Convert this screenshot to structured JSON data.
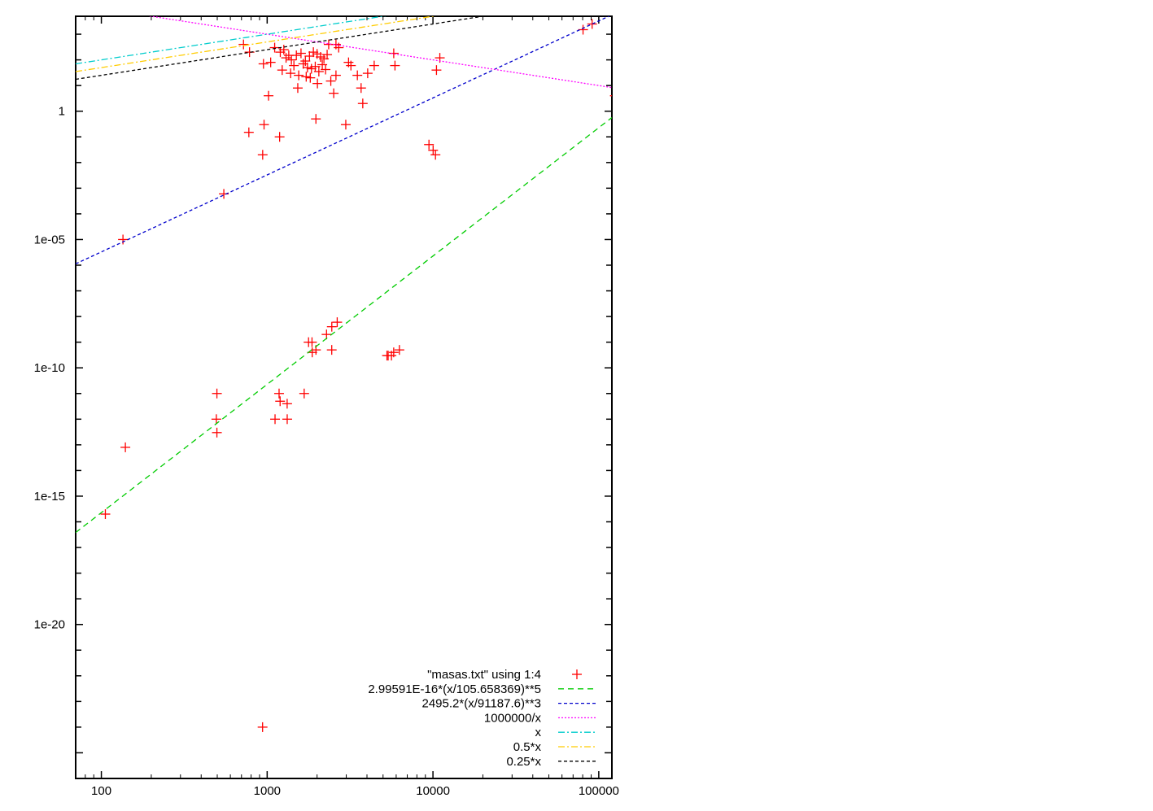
{
  "chart_data": {
    "type": "scatter",
    "x_scale": "log",
    "y_scale": "log",
    "xlim": [
      70,
      120000
    ],
    "ylim": [
      1e-26,
      5000.0
    ],
    "x_ticks": [
      100,
      1000,
      10000,
      100000
    ],
    "x_tick_labels": [
      "100",
      "1000",
      "10000",
      "100000"
    ],
    "y_ticks": [
      1,
      1e-05,
      1e-10,
      1e-15,
      1e-20
    ],
    "y_tick_labels": [
      "1",
      "1e-05",
      "1e-10",
      "1e-15",
      "1e-20"
    ],
    "grid": false,
    "legend_position": "bottom-right",
    "title": "",
    "xlabel": "",
    "ylabel": "",
    "series": [
      {
        "name": "\"masas.txt\" using 1:4",
        "kind": "points",
        "color": "#ff0000",
        "points": [
          [
            105.7,
            2e-16
          ],
          [
            139.6,
            8e-14
          ],
          [
            135,
            1e-05
          ],
          [
            493.7,
            1e-12
          ],
          [
            497.6,
            3e-13
          ],
          [
            497.7,
            1e-11
          ],
          [
            547.9,
            0.0006
          ],
          [
            775.5,
            0.15
          ],
          [
            782.7,
            200
          ],
          [
            938.3,
            1e-24
          ],
          [
            939.6,
            0.02
          ],
          [
            957.8,
            0.3
          ],
          [
            1019.5,
            4
          ],
          [
            1115.7,
            1e-12
          ],
          [
            1180,
            1e-11
          ],
          [
            1189,
            0.1
          ],
          [
            1197,
            5e-12
          ],
          [
            1232,
            40
          ],
          [
            1320,
            4e-12
          ],
          [
            1321,
            1e-12
          ],
          [
            1385,
            30
          ],
          [
            1530,
            8
          ],
          [
            1672,
            1e-11
          ],
          [
            1777,
            1e-09
          ],
          [
            1869,
            4e-10
          ],
          [
            1864,
            1e-09
          ],
          [
            1968,
            0.5
          ],
          [
            1969,
            5e-10
          ],
          [
            2010,
            12
          ],
          [
            2281,
            2e-09
          ],
          [
            2452,
            5e-10
          ],
          [
            2454,
            4e-09
          ],
          [
            2645,
            6e-09
          ],
          [
            2980,
            0.3
          ],
          [
            3097,
            80
          ],
          [
            3686,
            8
          ],
          [
            3773,
            2
          ],
          [
            4039,
            30
          ],
          [
            4421,
            60
          ],
          [
            5279,
            3e-10
          ],
          [
            5366,
            3e-10
          ],
          [
            5619,
            3e-10
          ],
          [
            5797,
            4e-10
          ],
          [
            6274,
            5e-10
          ],
          [
            9460,
            0.05
          ],
          [
            10023,
            0.03
          ],
          [
            10355,
            0.02
          ],
          [
            80385,
            1500
          ],
          [
            91188,
            2500
          ],
          [
            125000,
            4
          ],
          [
            1200,
            200
          ],
          [
            1300,
            120
          ],
          [
            1400,
            100
          ],
          [
            1500,
            150
          ],
          [
            1600,
            180
          ],
          [
            1700,
            90
          ],
          [
            1800,
            140
          ],
          [
            1900,
            200
          ],
          [
            2000,
            170
          ],
          [
            2100,
            130
          ],
          [
            2200,
            110
          ],
          [
            2300,
            160
          ],
          [
            1450,
            60
          ],
          [
            1650,
            70
          ],
          [
            1750,
            50
          ],
          [
            1850,
            45
          ],
          [
            1950,
            55
          ],
          [
            2050,
            35
          ],
          [
            2150,
            65
          ],
          [
            2250,
            42
          ],
          [
            1550,
            25
          ],
          [
            1720,
            22
          ],
          [
            1820,
            20
          ],
          [
            2520,
            5
          ],
          [
            2420,
            15
          ],
          [
            2600,
            25
          ],
          [
            3500,
            25
          ],
          [
            3200,
            60
          ],
          [
            5800,
            180
          ],
          [
            5900,
            60
          ],
          [
            10500,
            40
          ],
          [
            11000,
            120
          ],
          [
            720,
            400
          ],
          [
            950,
            70
          ],
          [
            1050,
            80
          ],
          [
            1110,
            300
          ],
          [
            2350,
            400
          ],
          [
            2600,
            400
          ],
          [
            1350,
            150
          ],
          [
            1260,
            250
          ],
          [
            2700,
            300
          ]
        ]
      },
      {
        "name": "2.99591E-16*(x/105.658369)**5",
        "kind": "function",
        "expr": "pow5",
        "color": "#00cc00",
        "dash": "7,5"
      },
      {
        "name": "2495.2*(x/91187.6)**3",
        "kind": "function",
        "expr": "pow3",
        "color": "#0000cc",
        "dash": "4,3"
      },
      {
        "name": "1000000/x",
        "kind": "function",
        "expr": "inv",
        "color": "#ff00ff",
        "dash": "2,2"
      },
      {
        "name": "x",
        "kind": "function",
        "expr": "lin1",
        "color": "#00cccc",
        "dash": "8,3,2,3"
      },
      {
        "name": "0.5*x",
        "kind": "function",
        "expr": "lin05",
        "color": "#ffcc00",
        "dash": "8,3,2,3"
      },
      {
        "name": "0.25*x",
        "kind": "function",
        "expr": "lin025",
        "color": "#000000",
        "dash": "4,3"
      }
    ]
  }
}
